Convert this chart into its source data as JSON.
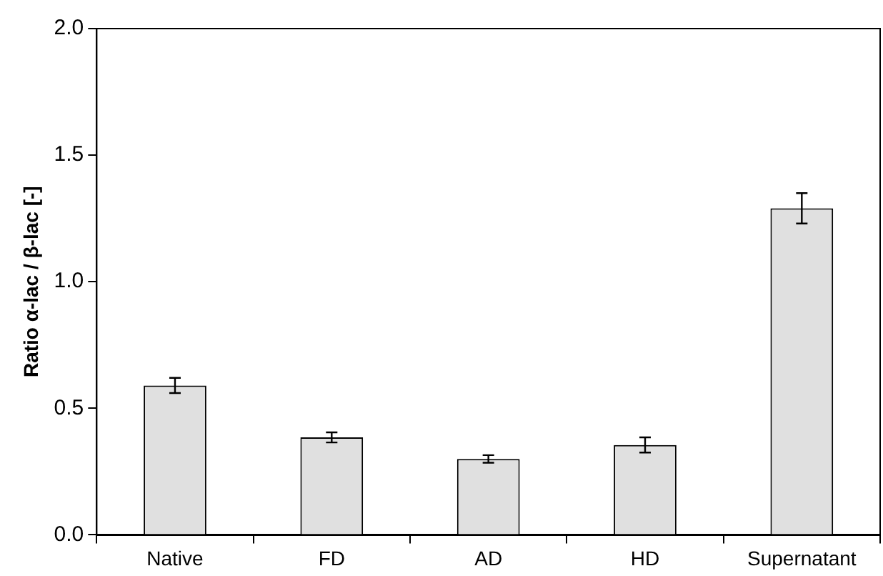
{
  "chart_data": {
    "type": "bar",
    "ylabel": "Ratio α-lac / β-lac [-]",
    "categories": [
      "Native",
      "FD",
      "AD",
      "HD",
      "Supernatant"
    ],
    "values": [
      0.59,
      0.385,
      0.3,
      0.355,
      1.29
    ],
    "errors": [
      0.03,
      0.02,
      0.015,
      0.03,
      0.06
    ],
    "color": "#e0e0e0",
    "ylim": [
      0,
      2.0
    ],
    "yticks": [
      {
        "value": 0,
        "label": "0.0"
      },
      {
        "value": 0.5,
        "label": "0.5"
      },
      {
        "value": 1,
        "label": "1.0"
      },
      {
        "value": 1.5,
        "label": "1.5"
      },
      {
        "value": 2,
        "label": "2.0"
      }
    ],
    "grid": false,
    "legend": false
  }
}
